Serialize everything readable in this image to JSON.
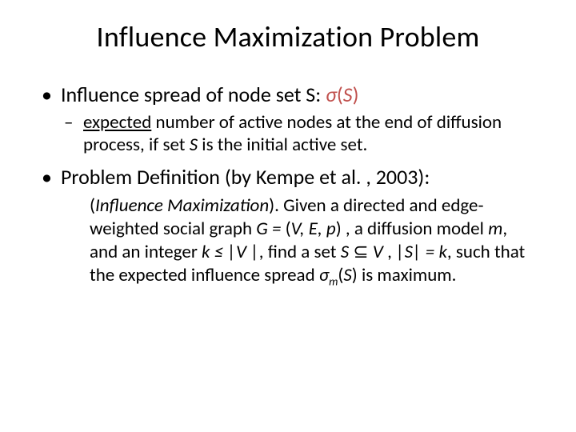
{
  "colors": {
    "background": "#ffffff",
    "text": "#000000",
    "accent": "#c0504d"
  },
  "typography": {
    "title_fontsize": 36,
    "bullet_l1_fontsize": 26,
    "bullet_l2_fontsize": 23,
    "def_fontsize": 23,
    "font_family": "Calibri"
  },
  "title": "Influence Maximization Problem",
  "b1_prefix": "Influence spread of node set S: ",
  "b1_sigma": "σ",
  "b1_paren_open": "(",
  "b1_S": "S",
  "b1_paren_close": ")",
  "b1_sub_expected": "expected",
  "b1_sub_rest": " number of active nodes at the end of diffusion process, if set ",
  "b1_sub_S": "S",
  "b1_sub_tail": " is the initial active set.",
  "b2_text": "Problem Definition (by Kempe et al. , 2003):",
  "def_open_space": " ",
  "def_open_paren": "(",
  "def_im": "Influence Maximization",
  "def_close_paren": "). ",
  "def_t1": "Given a directed and edge-weighted social graph ",
  "def_G": "G =",
  "def_t2": " (",
  "def_VEp": "V, E, p",
  "def_t3": ") , a diffusion model ",
  "def_m": "m",
  "def_t4": ", and an integer ",
  "def_k1": "k ≤ ",
  "def_absV": "|V |",
  "def_t5": ", find a set ",
  "def_S1": "S ",
  "def_subset": "⊆ ",
  "def_V2": "V ",
  "def_t6": ", ",
  "def_absS": "|S| ",
  "def_eqk": "= k",
  "def_t7": ", such that the expected influence spread ",
  "def_sigma2": "σ",
  "def_sub_m": "m",
  "def_paren2o": "(",
  "def_S2": "S",
  "def_paren2c": ") ",
  "def_tail": "is maximum."
}
